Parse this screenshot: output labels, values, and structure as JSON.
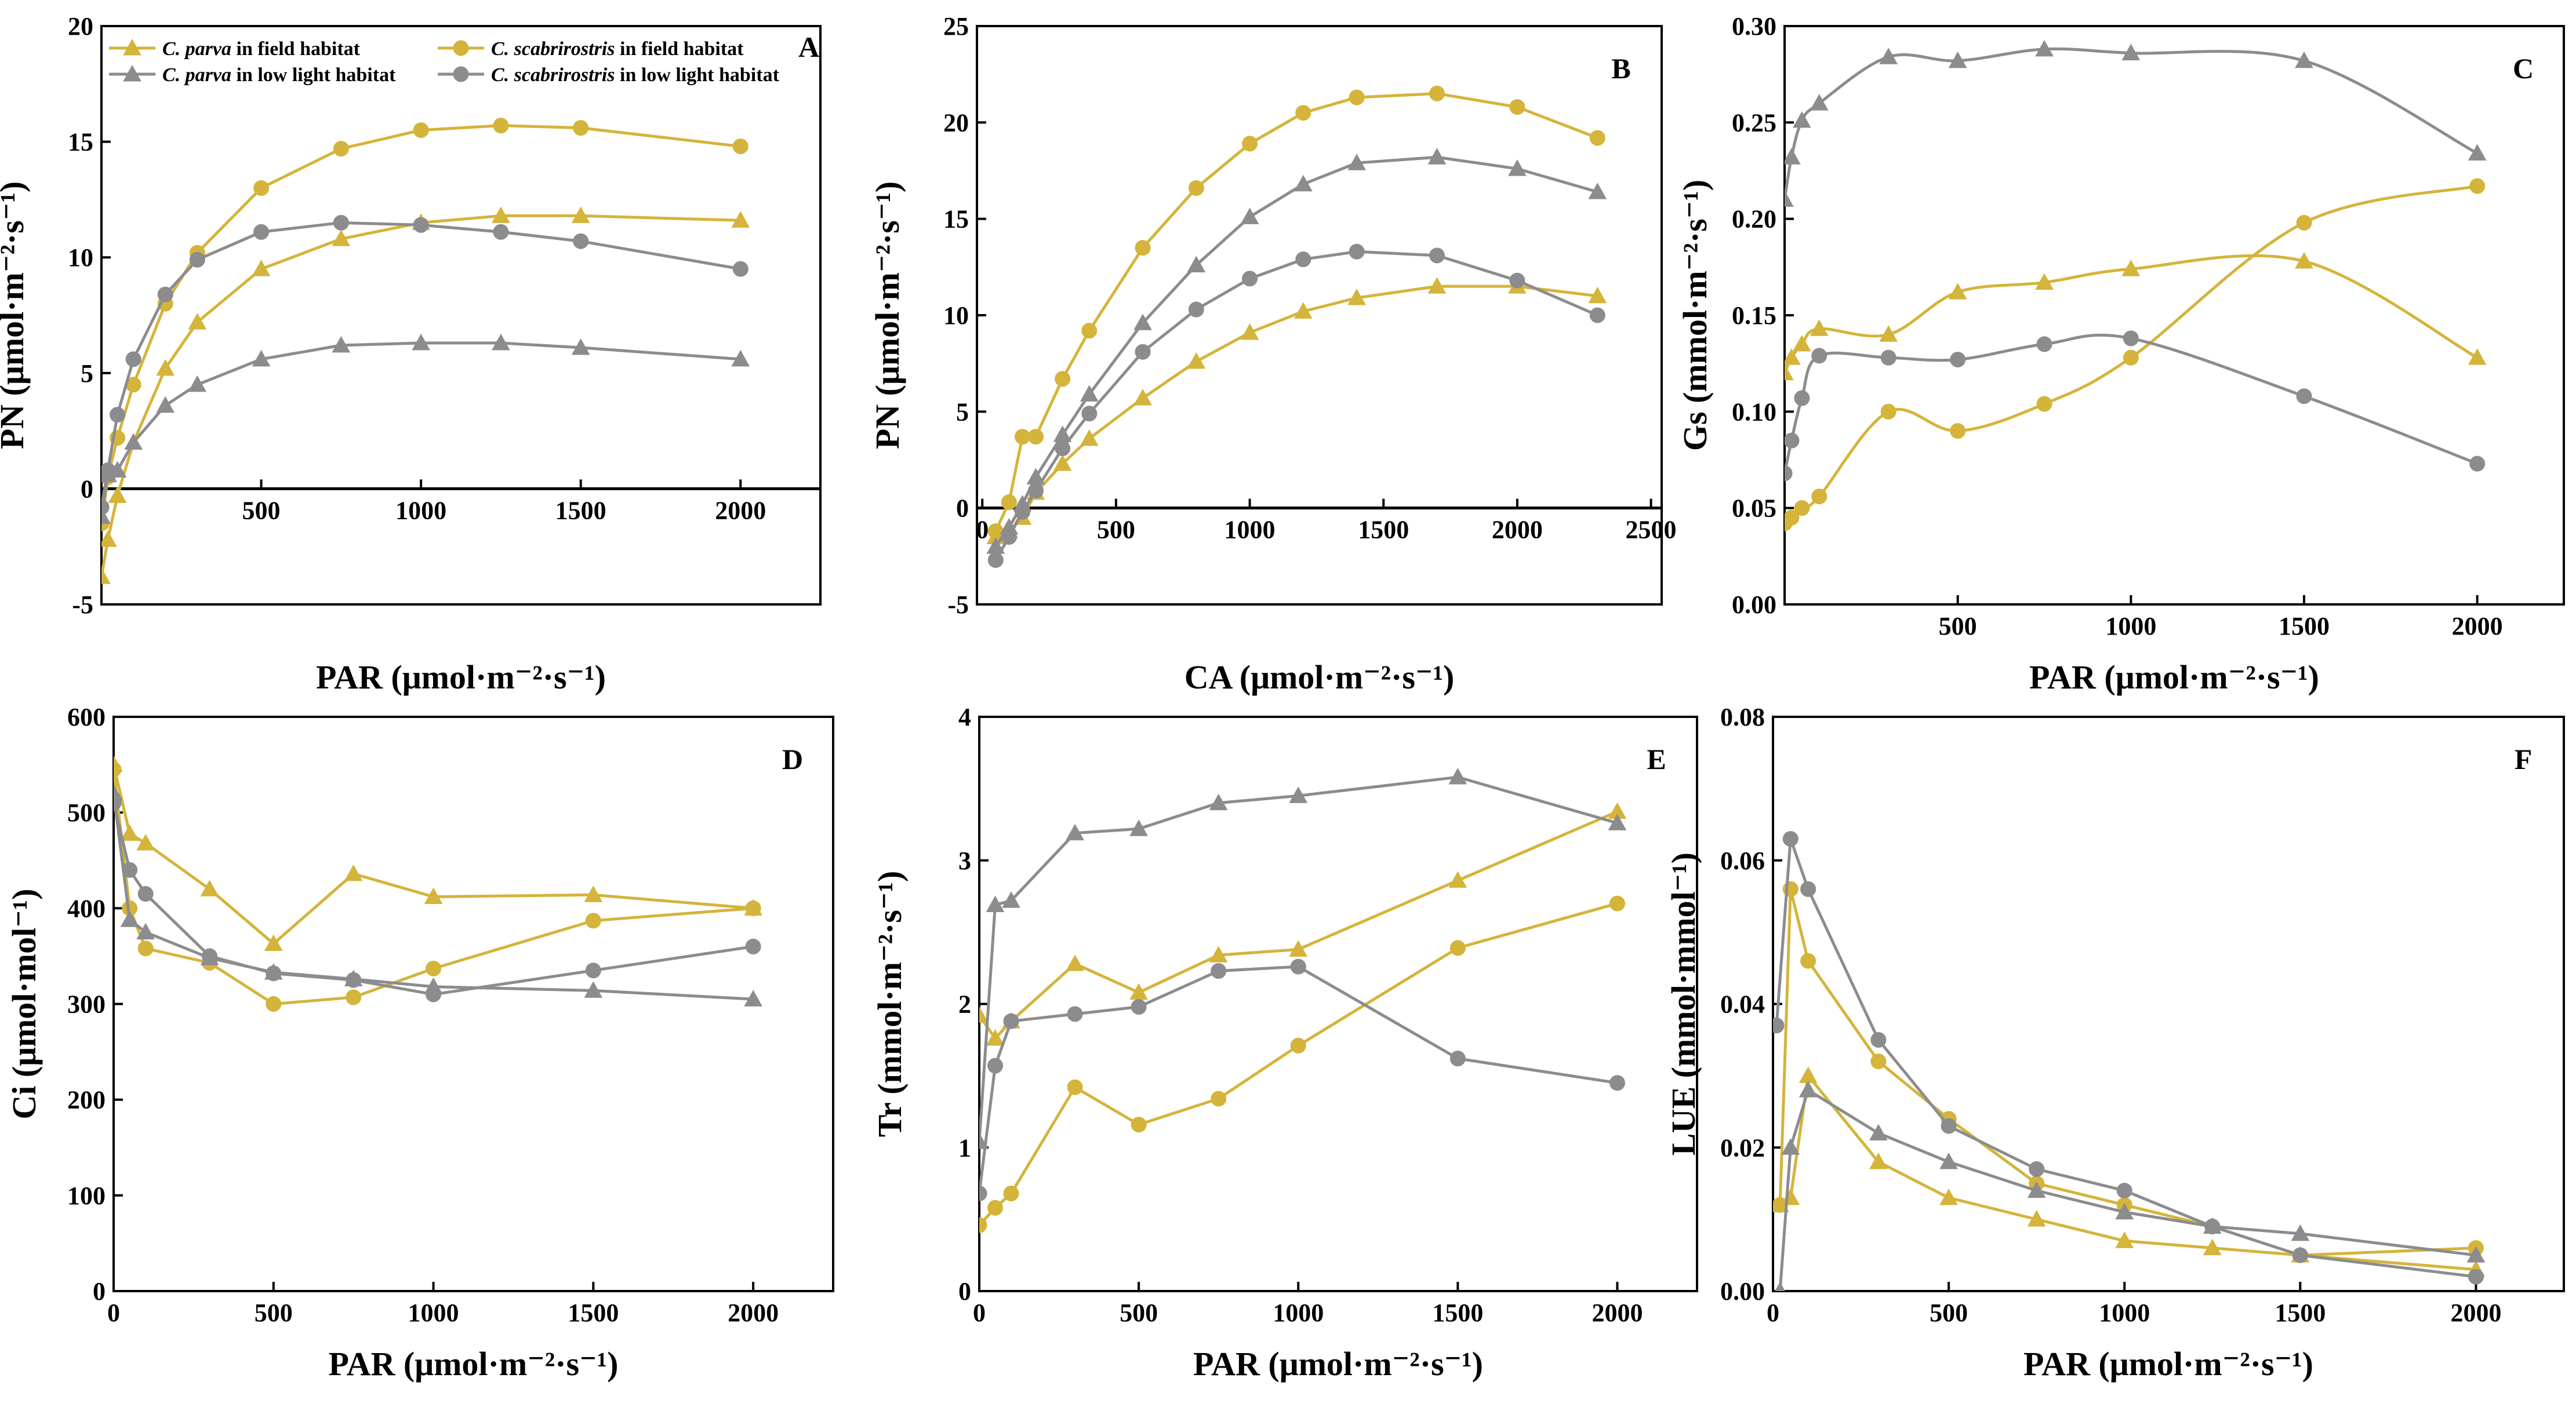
{
  "colors": {
    "gold": "#D4B43A",
    "gray": "#8C8C8E",
    "axis": "#000000"
  },
  "legend": [
    {
      "species": "C. parva",
      "suffix": " in field habitat",
      "color": "#D4B43A",
      "marker": "triangle"
    },
    {
      "species": "C. scabrirostris",
      "suffix": " in field habitat",
      "color": "#D4B43A",
      "marker": "circle"
    },
    {
      "species": "C. parva",
      "suffix": " in low light habitat",
      "color": "#8C8C8E",
      "marker": "triangle"
    },
    {
      "species": "C. scabrirostris",
      "suffix": " in low light habitat",
      "color": "#8C8C8E",
      "marker": "circle"
    }
  ],
  "chart_data": [
    {
      "panel": "A",
      "type": "line",
      "xlabel": "PAR (μmol·m⁻²·s⁻¹)",
      "ylabel": "PN (μmol·m⁻²·s⁻¹)",
      "xlim": [
        0,
        2250
      ],
      "ylim": [
        -5,
        20
      ],
      "xticks": [
        500,
        1000,
        1500,
        2000
      ],
      "yticks": [
        -5,
        0,
        5,
        10,
        15,
        20
      ],
      "tick_labels_x": [
        "500",
        "1000",
        "1500",
        "2000"
      ],
      "tick_labels_y": [
        "-5",
        "0",
        "5",
        "10",
        "15",
        "20"
      ],
      "x_axis_at_zero": true,
      "smooth": false,
      "series": [
        {
          "name": "C. parva in field habitat",
          "color": "#D4B43A",
          "marker": "triangle",
          "x": [
            0,
            20,
            50,
            100,
            200,
            300,
            500,
            750,
            1000,
            1250,
            1500,
            2000
          ],
          "y": [
            -3.8,
            -2.2,
            -0.3,
            2.0,
            5.2,
            7.2,
            9.5,
            10.8,
            11.5,
            11.8,
            11.8,
            11.6
          ]
        },
        {
          "name": "C. scabrirostris in field habitat",
          "color": "#D4B43A",
          "marker": "circle",
          "x": [
            0,
            20,
            50,
            100,
            200,
            300,
            500,
            750,
            1000,
            1250,
            1500,
            2000
          ],
          "y": [
            -1.5,
            0.5,
            2.2,
            4.5,
            8.0,
            10.2,
            13.0,
            14.7,
            15.5,
            15.7,
            15.6,
            14.8
          ]
        },
        {
          "name": "C. parva in low light habitat",
          "color": "#8C8C8E",
          "marker": "triangle",
          "x": [
            0,
            20,
            50,
            100,
            200,
            300,
            500,
            750,
            1000,
            1250,
            1500,
            2000
          ],
          "y": [
            -1.2,
            0.6,
            0.8,
            2.0,
            3.6,
            4.5,
            5.6,
            6.2,
            6.3,
            6.3,
            6.1,
            5.6
          ]
        },
        {
          "name": "C. scabrirostris in low light habitat",
          "color": "#8C8C8E",
          "marker": "circle",
          "x": [
            0,
            20,
            50,
            100,
            200,
            300,
            500,
            750,
            1000,
            1250,
            1500,
            2000
          ],
          "y": [
            -0.8,
            0.8,
            3.2,
            5.6,
            8.4,
            9.9,
            11.1,
            11.5,
            11.4,
            11.1,
            10.7,
            9.5
          ]
        }
      ]
    },
    {
      "panel": "B",
      "type": "line",
      "xlabel": "CA (μmol·m⁻²·s⁻¹)",
      "ylabel": "PN (μmol·m⁻²·s⁻¹)",
      "xlim": [
        -20,
        2540
      ],
      "ylim": [
        -5,
        25
      ],
      "xticks": [
        0,
        500,
        1000,
        1500,
        2000,
        2500
      ],
      "yticks": [
        -5,
        0,
        5,
        10,
        15,
        20,
        25
      ],
      "tick_labels_x": [
        "0",
        "500",
        "1000",
        "1500",
        "2000",
        "2500"
      ],
      "tick_labels_y": [
        "-5",
        "0",
        "5",
        "10",
        "15",
        "20",
        "25"
      ],
      "x_axis_at_zero": true,
      "smooth": false,
      "series": [
        {
          "name": "C. parva in field habitat",
          "color": "#D4B43A",
          "marker": "triangle",
          "x": [
            50,
            100,
            150,
            200,
            300,
            400,
            600,
            800,
            1000,
            1200,
            1400,
            1700,
            2000,
            2300
          ],
          "y": [
            -1.5,
            -1.2,
            -0.5,
            0.8,
            2.3,
            3.6,
            5.7,
            7.6,
            9.1,
            10.2,
            10.9,
            11.5,
            11.5,
            11.0
          ]
        },
        {
          "name": "C. scabrirostris in field habitat",
          "color": "#D4B43A",
          "marker": "circle",
          "x": [
            50,
            100,
            150,
            200,
            300,
            400,
            600,
            800,
            1000,
            1200,
            1400,
            1700,
            2000,
            2300
          ],
          "y": [
            -1.2,
            0.3,
            3.7,
            3.7,
            6.7,
            9.2,
            13.5,
            16.6,
            18.9,
            20.5,
            21.3,
            21.5,
            20.8,
            19.2
          ]
        },
        {
          "name": "C. parva in low light habitat",
          "color": "#8C8C8E",
          "marker": "triangle",
          "x": [
            50,
            100,
            150,
            200,
            300,
            400,
            600,
            800,
            1000,
            1200,
            1400,
            1700,
            2000,
            2300
          ],
          "y": [
            -2.0,
            -1.0,
            0.2,
            1.6,
            3.8,
            5.9,
            9.6,
            12.6,
            15.1,
            16.8,
            17.9,
            18.2,
            17.6,
            16.4
          ]
        },
        {
          "name": "C. scabrirostris in low light habitat",
          "color": "#8C8C8E",
          "marker": "circle",
          "x": [
            50,
            100,
            150,
            200,
            300,
            400,
            600,
            800,
            1000,
            1200,
            1400,
            1700,
            2000,
            2300
          ],
          "y": [
            -2.7,
            -1.5,
            -0.2,
            0.9,
            3.1,
            4.9,
            8.1,
            10.3,
            11.9,
            12.9,
            13.3,
            13.1,
            11.8,
            10.0
          ]
        }
      ]
    },
    {
      "panel": "C",
      "type": "line",
      "xlabel": "PAR (μmol·m⁻²·s⁻¹)",
      "ylabel": "Gs (mmol·m⁻²·s⁻¹)",
      "xlim": [
        0,
        2250
      ],
      "ylim": [
        0,
        0.3
      ],
      "xticks": [
        500,
        1000,
        1500,
        2000
      ],
      "yticks": [
        0,
        0.05,
        0.1,
        0.15,
        0.2,
        0.25,
        0.3
      ],
      "tick_labels_x": [
        "500",
        "1000",
        "1500",
        "2000"
      ],
      "tick_labels_y": [
        "0.00",
        "0.05",
        "0.10",
        "0.15",
        "0.20",
        "0.25",
        "0.30"
      ],
      "x_axis_at_zero": false,
      "smooth": true,
      "series": [
        {
          "name": "C. parva in field habitat",
          "color": "#D4B43A",
          "marker": "triangle",
          "x": [
            0,
            20,
            50,
            100,
            300,
            500,
            750,
            1000,
            1500,
            2000
          ],
          "y": [
            0.12,
            0.128,
            0.135,
            0.143,
            0.14,
            0.162,
            0.167,
            0.174,
            0.178,
            0.128
          ]
        },
        {
          "name": "C. scabrirostris in field habitat",
          "color": "#D4B43A",
          "marker": "circle",
          "x": [
            0,
            20,
            50,
            100,
            300,
            500,
            750,
            1000,
            1500,
            2000
          ],
          "y": [
            0.042,
            0.045,
            0.05,
            0.056,
            0.1,
            0.09,
            0.104,
            0.128,
            0.198,
            0.217
          ]
        },
        {
          "name": "C. parva in low light habitat",
          "color": "#8C8C8E",
          "marker": "triangle",
          "x": [
            0,
            20,
            50,
            100,
            300,
            500,
            750,
            1000,
            1500,
            2000
          ],
          "y": [
            0.21,
            0.232,
            0.251,
            0.26,
            0.284,
            0.282,
            0.288,
            0.286,
            0.282,
            0.234
          ]
        },
        {
          "name": "C. scabrirostris in low light habitat",
          "color": "#8C8C8E",
          "marker": "circle",
          "x": [
            0,
            20,
            50,
            100,
            300,
            500,
            750,
            1000,
            1500,
            2000
          ],
          "y": [
            0.068,
            0.085,
            0.107,
            0.129,
            0.128,
            0.127,
            0.135,
            0.138,
            0.108,
            0.073
          ]
        }
      ]
    },
    {
      "panel": "D",
      "type": "line",
      "xlabel": "PAR (μmol·m⁻²·s⁻¹)",
      "ylabel": "Ci (μmol·mol⁻¹)",
      "xlim": [
        0,
        2250
      ],
      "ylim": [
        0,
        600
      ],
      "xticks": [
        0,
        500,
        1000,
        1500,
        2000
      ],
      "yticks": [
        0,
        100,
        200,
        300,
        400,
        500,
        600
      ],
      "tick_labels_x": [
        "0",
        "500",
        "1000",
        "1500",
        "2000"
      ],
      "tick_labels_y": [
        "0",
        "100",
        "200",
        "300",
        "400",
        "500",
        "600"
      ],
      "x_axis_at_zero": false,
      "smooth": false,
      "series": [
        {
          "name": "C. parva in field habitat",
          "color": "#D4B43A",
          "marker": "triangle",
          "x": [
            0,
            50,
            100,
            300,
            500,
            750,
            1000,
            1500,
            2000
          ],
          "y": [
            550,
            478,
            468,
            420,
            363,
            436,
            412,
            414,
            400
          ]
        },
        {
          "name": "C. scabrirostris in field habitat",
          "color": "#D4B43A",
          "marker": "circle",
          "x": [
            0,
            50,
            100,
            300,
            500,
            750,
            1000,
            1500,
            2000
          ],
          "y": [
            545,
            400,
            358,
            343,
            300,
            307,
            337,
            387,
            400
          ]
        },
        {
          "name": "C. parva in low light habitat",
          "color": "#8C8C8E",
          "marker": "triangle",
          "x": [
            0,
            50,
            100,
            300,
            500,
            750,
            1000,
            1500,
            2000
          ],
          "y": [
            520,
            388,
            375,
            348,
            333,
            326,
            318,
            314,
            305
          ]
        },
        {
          "name": "C. scabrirostris in low light habitat",
          "color": "#8C8C8E",
          "marker": "circle",
          "x": [
            0,
            50,
            100,
            300,
            500,
            750,
            1000,
            1500,
            2000
          ],
          "y": [
            510,
            440,
            415,
            350,
            332,
            325,
            310,
            335,
            360
          ]
        }
      ]
    },
    {
      "panel": "E",
      "type": "line",
      "xlabel": "PAR (μmol·m⁻²·s⁻¹)",
      "ylabel": "Tr (mmol·m⁻²·s⁻¹)",
      "xlim": [
        0,
        2250
      ],
      "ylim": [
        0,
        4
      ],
      "xticks": [
        0,
        500,
        1000,
        1500,
        2000
      ],
      "yticks": [
        0,
        1,
        2,
        3,
        4
      ],
      "tick_labels_x": [
        "0",
        "500",
        "1000",
        "1500",
        "2000"
      ],
      "tick_labels_y": [
        "0",
        "1",
        "2",
        "3",
        "4"
      ],
      "x_axis_at_zero": false,
      "smooth": false,
      "series": [
        {
          "name": "C. parva in field habitat",
          "color": "#D4B43A",
          "marker": "triangle",
          "x": [
            0,
            50,
            100,
            300,
            500,
            750,
            1000,
            1500,
            2000
          ],
          "y": [
            1.92,
            1.76,
            1.88,
            2.28,
            2.08,
            2.34,
            2.38,
            2.86,
            3.34
          ]
        },
        {
          "name": "C. scabrirostris in field habitat",
          "color": "#D4B43A",
          "marker": "circle",
          "x": [
            0,
            50,
            100,
            300,
            500,
            750,
            1000,
            1500,
            2000
          ],
          "y": [
            0.46,
            0.58,
            0.68,
            1.42,
            1.16,
            1.34,
            1.71,
            2.39,
            2.7
          ]
        },
        {
          "name": "C. parva in low light habitat",
          "color": "#8C8C8E",
          "marker": "triangle",
          "x": [
            0,
            50,
            100,
            300,
            500,
            750,
            1000,
            1500,
            2000
          ],
          "y": [
            1.04,
            2.69,
            2.72,
            3.19,
            3.22,
            3.4,
            3.45,
            3.58,
            3.26
          ]
        },
        {
          "name": "C. scabrirostris in low light habitat",
          "color": "#8C8C8E",
          "marker": "circle",
          "x": [
            0,
            50,
            100,
            300,
            500,
            750,
            1000,
            1500,
            2000
          ],
          "y": [
            0.68,
            1.57,
            1.88,
            1.93,
            1.98,
            2.23,
            2.26,
            1.62,
            1.45
          ]
        }
      ]
    },
    {
      "panel": "F",
      "type": "line",
      "xlabel": "PAR (μmol·m⁻²·s⁻¹)",
      "ylabel": "LUE (mmol·mmol⁻¹)",
      "xlim": [
        0,
        2250
      ],
      "ylim": [
        0,
        0.08
      ],
      "xticks": [
        0,
        500,
        1000,
        1500,
        2000
      ],
      "yticks": [
        0,
        0.02,
        0.04,
        0.06,
        0.08
      ],
      "tick_labels_x": [
        "0",
        "500",
        "1000",
        "1500",
        "2000"
      ],
      "tick_labels_y": [
        "0.00",
        "0.02",
        "0.04",
        "0.06",
        "0.08"
      ],
      "x_axis_at_zero": false,
      "smooth": false,
      "series": [
        {
          "name": "C. parva in field habitat",
          "color": "#D4B43A",
          "marker": "triangle",
          "x": [
            20,
            50,
            100,
            300,
            500,
            750,
            1000,
            1250,
            1500,
            2000
          ],
          "y": [
            0.012,
            0.013,
            0.03,
            0.018,
            0.013,
            0.01,
            0.007,
            0.006,
            0.005,
            0.003
          ]
        },
        {
          "name": "C. scabrirostris in field habitat",
          "color": "#D4B43A",
          "marker": "circle",
          "x": [
            20,
            50,
            100,
            300,
            500,
            750,
            1000,
            1250,
            1500,
            2000
          ],
          "y": [
            0.012,
            0.056,
            0.046,
            0.032,
            0.024,
            0.015,
            0.012,
            0.009,
            0.005,
            0.006
          ]
        },
        {
          "name": "C. parva in low light habitat",
          "color": "#8C8C8E",
          "marker": "triangle",
          "x": [
            20,
            50,
            100,
            300,
            500,
            750,
            1000,
            1250,
            1500,
            2000
          ],
          "y": [
            0.0,
            0.02,
            0.028,
            0.022,
            0.018,
            0.014,
            0.011,
            0.009,
            0.008,
            0.005
          ]
        },
        {
          "name": "C. scabrirostris in low light habitat",
          "color": "#8C8C8E",
          "marker": "circle",
          "x": [
            10,
            50,
            100,
            300,
            500,
            750,
            1000,
            1250,
            1500,
            2000
          ],
          "y": [
            0.037,
            0.063,
            0.056,
            0.035,
            0.023,
            0.017,
            0.014,
            0.009,
            0.005,
            0.002
          ]
        }
      ]
    }
  ]
}
